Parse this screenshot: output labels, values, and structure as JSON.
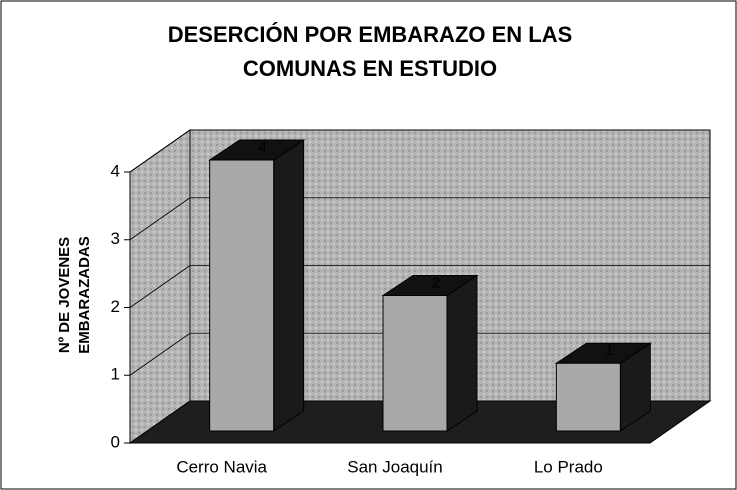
{
  "chart_data": {
    "type": "bar3d",
    "title": [
      "DESERCIÓN  POR EMBARAZO EN LAS",
      "COMUNAS EN ESTUDIO"
    ],
    "y_label": [
      "Nº DE JOVENES",
      "EMBARAZADAS"
    ],
    "categories": [
      "Cerro Navia",
      "San Joaquín",
      "Lo Prado"
    ],
    "values": [
      4,
      2,
      1
    ],
    "color": "#a9a9a9",
    "ylim": [
      0,
      4
    ],
    "yticks": [
      0,
      1,
      2,
      3,
      4
    ],
    "grid": true
  }
}
